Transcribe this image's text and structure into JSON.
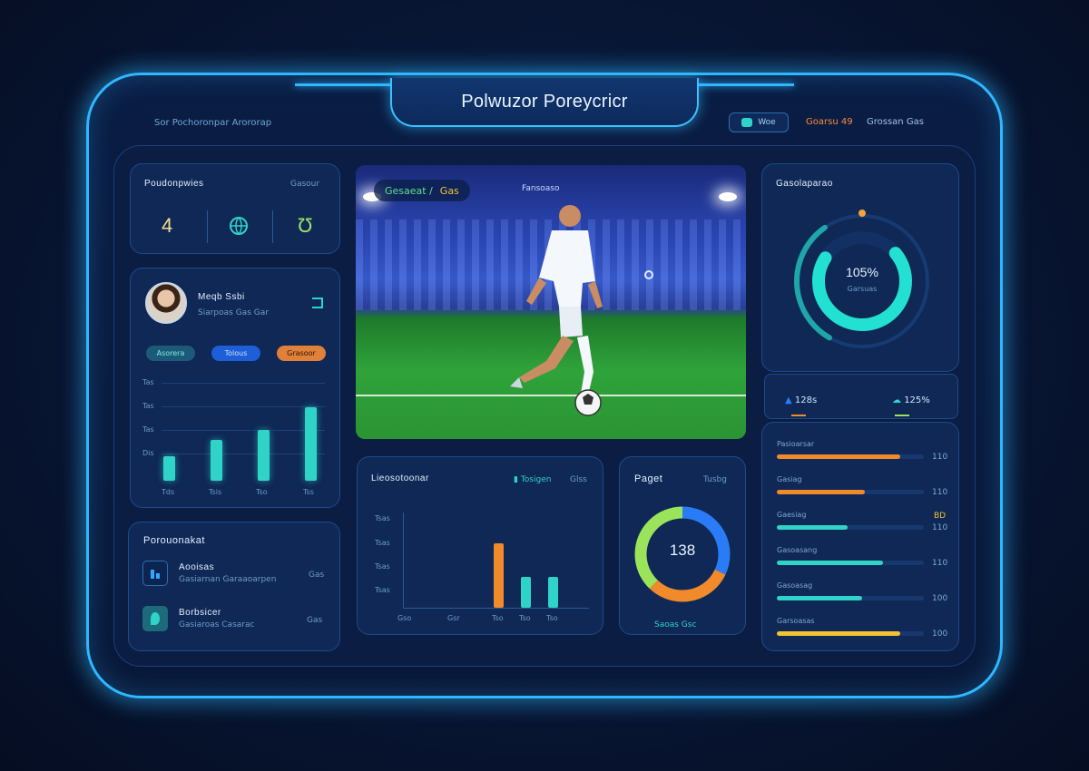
{
  "app": {
    "title": "Polwuzor Poreycricr"
  },
  "header": {
    "breadcrumb": "Sor Pochoronpar Arororap",
    "status_label": "Woe",
    "stats": [
      {
        "label": "Goarsu",
        "value": "49",
        "color": "#ff8a3c"
      },
      {
        "label": "Grossan",
        "value": "Gas",
        "color": "#9fc3ea"
      }
    ]
  },
  "summary": {
    "title": "Poudonpwies",
    "action": "Gasour",
    "items": [
      {
        "value": "4",
        "icon": "number",
        "color": "#f3e08c"
      },
      {
        "value": "",
        "icon": "globe-icon",
        "color": "#2fd3c8"
      },
      {
        "value": "Ʊ",
        "icon": "shield-icon",
        "color": "#9be36a"
      }
    ]
  },
  "profile": {
    "name": "Meqb Ssbi",
    "subtitle": "Siarpoas Gas Gar",
    "pills": [
      {
        "label": "Asorera",
        "bg": "#1c5a7a",
        "fg": "#7fe9e3"
      },
      {
        "label": "Tolous",
        "bg": "#1e5ed8",
        "fg": "#cfe4ff"
      },
      {
        "label": "Grasoor",
        "bg": "#e0803a",
        "fg": "#2b1405"
      }
    ],
    "y_ticks": [
      "Tas",
      "Tas",
      "Tas",
      "Dis"
    ],
    "x_labels": [
      "Tds",
      "Tsis",
      "Tso",
      "Tss"
    ]
  },
  "profile_chart": {
    "type": "bar",
    "categories": [
      "Tds",
      "Tsis",
      "Tso",
      "Tss"
    ],
    "values": [
      25,
      42,
      52,
      75
    ],
    "ylim": [
      0,
      100
    ]
  },
  "list_card": {
    "title": "Porouonakat",
    "items": [
      {
        "title": "Aooisas",
        "subtitle": "Gasiarnan Garaaoarpen",
        "value": "Gas",
        "icon": "chart-icon"
      },
      {
        "title": "Borbsicer",
        "subtitle": "Gasiaroas Casarac",
        "value": "Gas",
        "icon": "leaf-icon"
      }
    ]
  },
  "video": {
    "tag": "Gesaeat /",
    "tag_badge": "Gas",
    "subtitle": "Fansoaso"
  },
  "events_card": {
    "title": "Lieosotoonar",
    "legend_primary": "Tosigen",
    "legend_secondary": "Glss",
    "y_ticks": [
      "Tsas",
      "Tsas",
      "Tsas",
      "Tsas"
    ],
    "x_labels": [
      "Gso",
      "Gsr",
      "Tso",
      "Tso",
      "Tso"
    ]
  },
  "events_chart": {
    "type": "bar",
    "categories": [
      "Gso",
      "Gsr",
      "Tso",
      "Tso",
      "Tso"
    ],
    "series": [
      {
        "values": [
          0,
          0,
          68,
          32,
          32
        ]
      }
    ],
    "ylim": [
      0,
      100
    ]
  },
  "pie_card": {
    "title": "Paget",
    "subtitle": "Tusbg",
    "center_value": "138",
    "legend": "Saoas Gsc"
  },
  "pie_chart": {
    "type": "pie",
    "values": [
      32,
      30,
      38
    ],
    "colors": [
      "#2a7cf6",
      "#f08a2a",
      "#9be35a"
    ]
  },
  "gauge_card": {
    "title": "Gasolaparao",
    "center_value": "105%",
    "center_sub": "Garsuas",
    "gauge_value": 70
  },
  "mini_stats": [
    {
      "value": "128s",
      "color": "#2a7cf6"
    },
    {
      "value": "125%",
      "color": "#2fd3c8"
    }
  ],
  "bars_list": [
    {
      "label": "Pasioarsar",
      "value": "110",
      "fill": 0.84,
      "color": "#f08a2a"
    },
    {
      "label": "Gasiag",
      "value": "110",
      "fill": 0.6,
      "color": "#f08a2a"
    },
    {
      "label": "Gaesiag",
      "value": "110",
      "fill": 0.48,
      "color": "#2fd3c8",
      "badge": "BD"
    },
    {
      "label": "Gasoasang",
      "value": "110",
      "fill": 0.72,
      "color": "#2fd3c8"
    },
    {
      "label": "Gasoasag",
      "value": "100",
      "fill": 0.58,
      "color": "#2fd3c8"
    },
    {
      "label": "Garsoasas",
      "value": "100",
      "fill": 0.84,
      "color": "#f3c233"
    }
  ]
}
